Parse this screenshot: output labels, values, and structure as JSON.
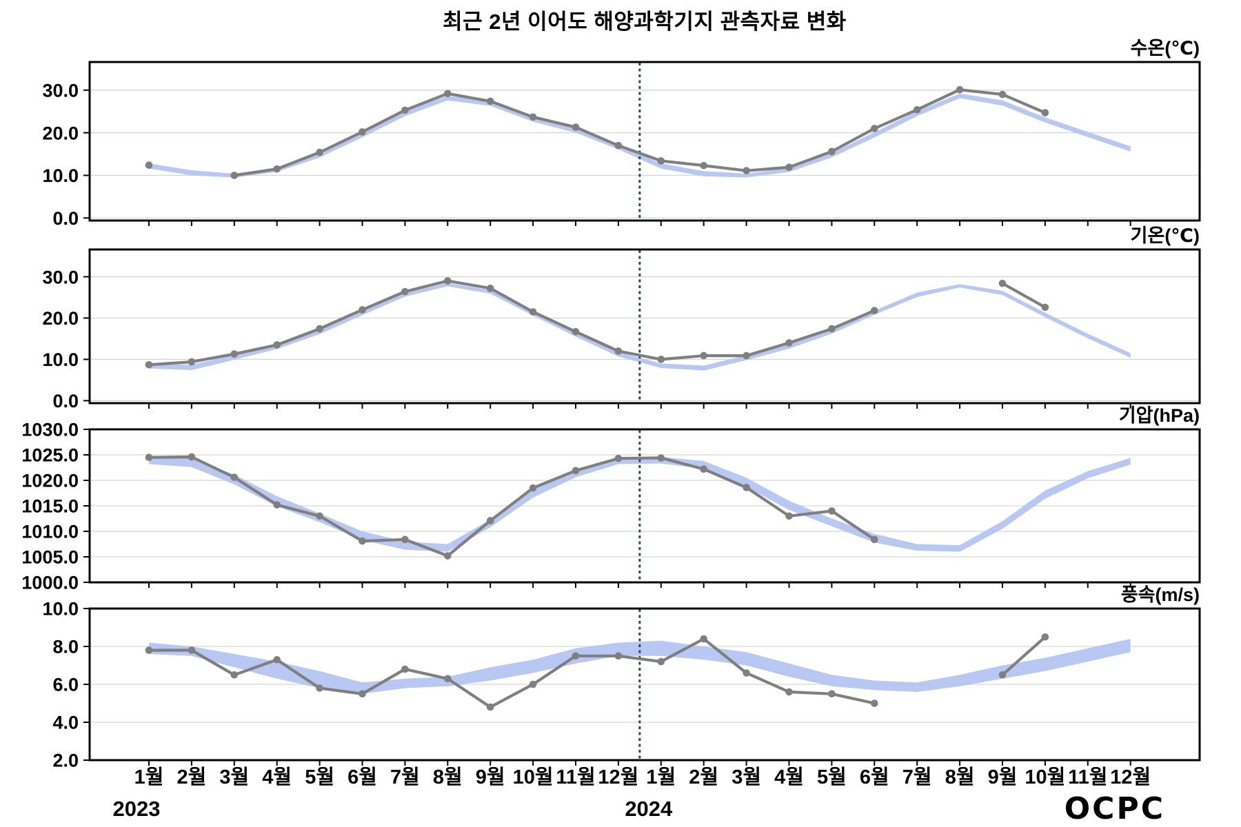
{
  "title": "최근 2년 이어도 해양과학기지 관측자료 변화",
  "logo": {
    "text": "OCPC"
  },
  "colors": {
    "observed_line": "#7f7f7f",
    "observed_point": "#7f7f7f",
    "climatology_band": "#b5c5f1",
    "year_divider": "#24456e",
    "grid": "#d6d6d6",
    "frame": "#000000",
    "logo_top": "#62c8f0",
    "logo_mid": "#2e7fc0",
    "logo_bottom": "#123f8a"
  },
  "x_axis": {
    "month_labels": [
      "1월",
      "2월",
      "3월",
      "4월",
      "5월",
      "6월",
      "7월",
      "8월",
      "9월",
      "10월",
      "11월",
      "12월",
      "1월",
      "2월",
      "3월",
      "4월",
      "5월",
      "6월",
      "7월",
      "8월",
      "9월",
      "10월",
      "11월",
      "12월"
    ],
    "year_labels": [
      "2023",
      "2024"
    ],
    "year_start_indices": [
      0,
      12
    ]
  },
  "chart_data": {
    "type": "line",
    "title": "최근 2년 이어도 해양과학기지 관측자료 변화",
    "categories": [
      "2023-1월",
      "2023-2월",
      "2023-3월",
      "2023-4월",
      "2023-5월",
      "2023-6월",
      "2023-7월",
      "2023-8월",
      "2023-9월",
      "2023-10월",
      "2023-11월",
      "2023-12월",
      "2024-1월",
      "2024-2월",
      "2024-3월",
      "2024-4월",
      "2024-5월",
      "2024-6월",
      "2024-7월",
      "2024-8월",
      "2024-9월",
      "2024-10월",
      "2024-11월",
      "2024-12월"
    ],
    "legend_position": "none",
    "grid": true,
    "panels": [
      {
        "id": "water-temp",
        "name": "수온",
        "unit_label": "수온(℃)",
        "ylim": [
          -0.6,
          36.6
        ],
        "yticks": [
          {
            "value": 30,
            "label": "30.0"
          },
          {
            "value": 20,
            "label": "20.0"
          },
          {
            "value": 10,
            "label": "10.0"
          },
          {
            "value": 0,
            "label": "0.0"
          }
        ],
        "observed": [
          12.4,
          null,
          10.0,
          11.5,
          15.4,
          20.2,
          25.3,
          29.2,
          27.4,
          23.7,
          21.3,
          17.0,
          13.4,
          12.3,
          11.1,
          11.9,
          15.6,
          21.0,
          25.4,
          30.1,
          29.0,
          24.7,
          null,
          null
        ],
        "band_upper": [
          12.8,
          11.2,
          10.4,
          11.8,
          15.3,
          20.1,
          25.1,
          28.7,
          27.4,
          23.7,
          21.1,
          17.2,
          12.8,
          11.0,
          10.4,
          11.8,
          15.3,
          20.1,
          25.1,
          29.2,
          27.6,
          23.6,
          20.2,
          16.8
        ],
        "band_lower": [
          11.6,
          10.0,
          9.5,
          10.8,
          14.2,
          18.9,
          23.9,
          27.6,
          26.3,
          22.6,
          20.0,
          16.1,
          11.6,
          9.8,
          9.5,
          10.8,
          14.2,
          18.9,
          23.9,
          28.1,
          26.4,
          22.4,
          19.0,
          15.6
        ]
      },
      {
        "id": "air-temp",
        "name": "기온",
        "unit_label": "기온(℃)",
        "ylim": [
          -0.6,
          36.6
        ],
        "yticks": [
          {
            "value": 30,
            "label": "30.0"
          },
          {
            "value": 20,
            "label": "20.0"
          },
          {
            "value": 10,
            "label": "10.0"
          },
          {
            "value": 0,
            "label": "0.0"
          }
        ],
        "observed": [
          8.7,
          9.4,
          11.3,
          13.5,
          17.4,
          22.0,
          26.4,
          29.0,
          27.2,
          21.5,
          16.7,
          12.0,
          10.0,
          10.9,
          10.9,
          14.0,
          17.4,
          21.8,
          null,
          null,
          28.4,
          22.6,
          null,
          null
        ],
        "band_upper": [
          8.9,
          8.7,
          11.1,
          13.6,
          17.2,
          21.7,
          26.1,
          28.5,
          26.8,
          21.6,
          16.6,
          11.8,
          9.0,
          8.5,
          11.0,
          13.7,
          17.3,
          21.8,
          26.2,
          28.2,
          26.6,
          21.3,
          16.2,
          11.5
        ],
        "band_lower": [
          7.8,
          7.4,
          9.9,
          12.5,
          16.1,
          20.7,
          25.2,
          27.7,
          25.9,
          20.6,
          15.5,
          10.7,
          7.9,
          7.3,
          9.8,
          12.6,
          16.2,
          20.8,
          25.1,
          27.4,
          25.6,
          20.2,
          15.1,
          10.4
        ]
      },
      {
        "id": "pressure",
        "name": "기압",
        "unit_label": "기압(hPa)",
        "ylim": [
          1000,
          1030
        ],
        "yticks": [
          {
            "value": 1030,
            "label": "1030.0"
          },
          {
            "value": 1025,
            "label": "1025.0"
          },
          {
            "value": 1020,
            "label": "1020.0"
          },
          {
            "value": 1015,
            "label": "1015.0"
          },
          {
            "value": 1010,
            "label": "1010.0"
          },
          {
            "value": 1005,
            "label": "1005.0"
          },
          {
            "value": 1000,
            "label": "1000.0"
          }
        ],
        "observed": [
          1024.5,
          1024.6,
          1020.6,
          1015.2,
          1013.0,
          1008.1,
          1008.4,
          1005.2,
          1012.1,
          1018.5,
          1021.9,
          1024.3,
          1024.4,
          1022.2,
          1018.6,
          1013.0,
          1014.0,
          1008.4,
          null,
          null,
          null,
          null,
          null,
          null
        ],
        "band_upper": [
          1024.6,
          1024.3,
          1021.1,
          1016.9,
          1013.5,
          1010.0,
          1008.0,
          1007.5,
          1012.3,
          1018.1,
          1022.0,
          1024.5,
          1024.6,
          1023.8,
          1020.5,
          1016.0,
          1012.5,
          1009.5,
          1007.5,
          1007.3,
          1012.0,
          1018.0,
          1021.8,
          1024.4
        ],
        "band_lower": [
          1023.2,
          1022.6,
          1019.2,
          1014.9,
          1011.8,
          1008.3,
          1006.4,
          1006.0,
          1010.8,
          1016.6,
          1020.6,
          1023.2,
          1023.3,
          1022.3,
          1018.7,
          1014.2,
          1011.0,
          1007.8,
          1006.2,
          1006.0,
          1010.5,
          1016.4,
          1020.4,
          1023.1
        ]
      },
      {
        "id": "wind-speed",
        "name": "풍속",
        "unit_label": "풍속(m/s)",
        "ylim": [
          2,
          10
        ],
        "yticks": [
          {
            "value": 10,
            "label": "10.0"
          },
          {
            "value": 8,
            "label": "8.0"
          },
          {
            "value": 6,
            "label": "6.0"
          },
          {
            "value": 4,
            "label": "4.0"
          },
          {
            "value": 2,
            "label": "2.0"
          }
        ],
        "observed": [
          7.8,
          7.8,
          6.5,
          7.3,
          5.8,
          5.5,
          6.8,
          6.3,
          4.8,
          6.0,
          7.5,
          7.5,
          7.2,
          8.4,
          6.6,
          5.6,
          5.5,
          5.0,
          null,
          null,
          6.5,
          8.5,
          null,
          null
        ],
        "band_upper": [
          8.2,
          8.0,
          7.6,
          7.2,
          6.7,
          6.1,
          6.3,
          6.4,
          6.9,
          7.3,
          7.9,
          8.2,
          8.3,
          8.0,
          7.7,
          7.1,
          6.5,
          6.2,
          6.1,
          6.5,
          7.0,
          7.4,
          7.9,
          8.4
        ],
        "band_lower": [
          7.6,
          7.5,
          6.9,
          6.3,
          5.8,
          5.5,
          5.8,
          5.9,
          6.2,
          6.6,
          7.1,
          7.5,
          7.5,
          7.3,
          7.0,
          6.4,
          5.9,
          5.7,
          5.6,
          5.9,
          6.3,
          6.7,
          7.2,
          7.7
        ]
      }
    ]
  }
}
